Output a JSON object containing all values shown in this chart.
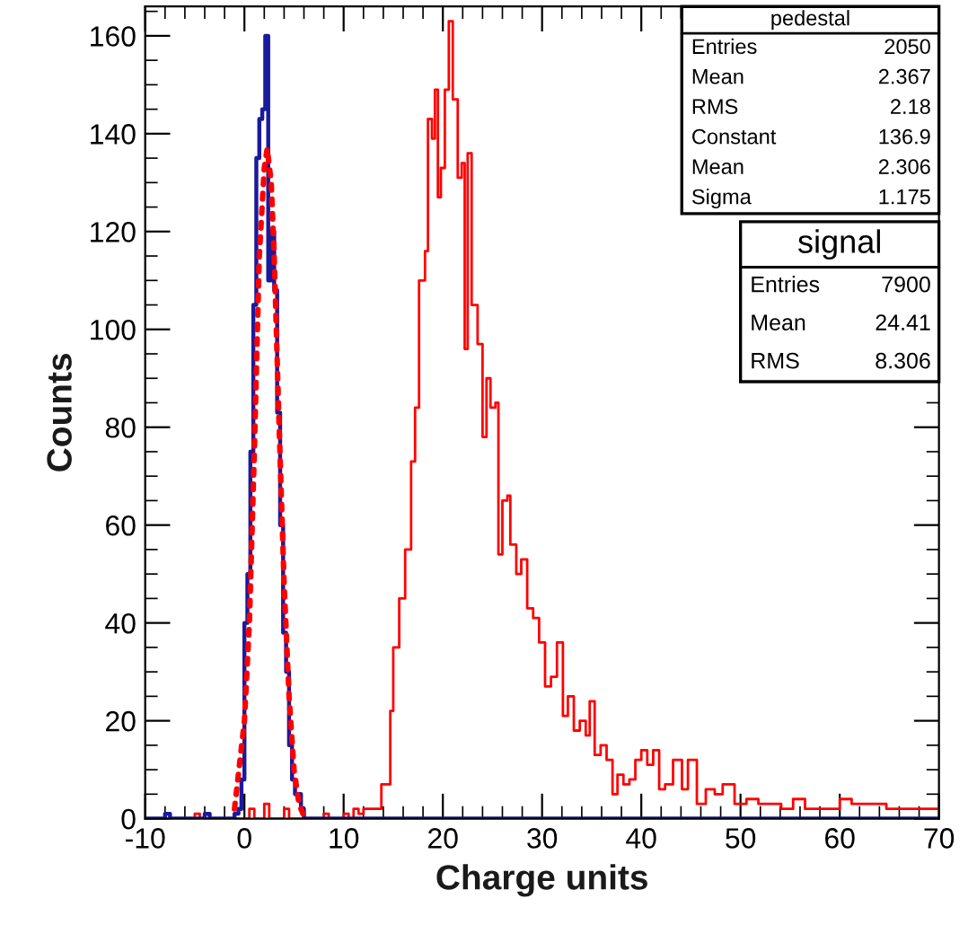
{
  "chart_data": {
    "type": "step",
    "xlabel": "Charge units",
    "ylabel": "Counts",
    "xlim": [
      -10,
      70
    ],
    "xticks": [
      -10,
      0,
      10,
      20,
      30,
      40,
      50,
      60,
      70
    ],
    "ylim": [
      0,
      166
    ],
    "yticks": [
      0,
      20,
      40,
      60,
      80,
      100,
      120,
      140,
      160
    ],
    "grid": false,
    "legend": false,
    "series": [
      {
        "color": "#ff0000",
        "x": [
          -10,
          -5,
          -4.5,
          0.5,
          1,
          2,
          2.5,
          4,
          4.5,
          8,
          8.5,
          10,
          10.5,
          11,
          11.5,
          12,
          12.4,
          13.8,
          14.7,
          15,
          15.6,
          16.2,
          16.8,
          17.2,
          17.6,
          18.2,
          18.5,
          18.9,
          19.2,
          19.5,
          19.8,
          20.2,
          20.6,
          21.0,
          21.5,
          21.9,
          22.2,
          22.5,
          22.9,
          23.5,
          24,
          24.4,
          24.8,
          25.3,
          25.6,
          26,
          26.5,
          26.8,
          27.4,
          27.9,
          28.5,
          29.1,
          29.7,
          30.3,
          30.9,
          31.5,
          32.1,
          32.6,
          33.2,
          33.8,
          34.4,
          34.8,
          35.3,
          35.9,
          36.5,
          37.1,
          37.6,
          38.2,
          38.8,
          39.4,
          40,
          40.6,
          41.2,
          41.8,
          42.4,
          43.2,
          44.1,
          44.7,
          45.6,
          46.5,
          47.4,
          48.2,
          49.4,
          50.6,
          51.8,
          52.9,
          54.1,
          55.3,
          56.5,
          58.2,
          60,
          61.2,
          62.9,
          64.7,
          66.5,
          68.2,
          70
        ],
        "values": [
          0,
          1,
          0,
          2,
          0,
          3,
          0,
          2,
          0,
          1,
          0,
          1,
          0,
          2,
          1,
          2,
          2,
          7,
          22,
          35,
          45,
          55,
          73,
          84,
          110,
          116,
          143,
          139,
          149,
          127,
          133,
          149,
          163,
          147,
          131,
          134,
          96,
          136,
          105,
          97,
          78,
          90,
          84,
          85,
          54,
          65,
          66,
          56,
          50,
          53,
          43,
          41,
          36,
          27,
          29,
          36,
          21,
          25,
          18,
          20,
          17,
          24,
          13,
          15,
          12,
          5,
          9,
          7,
          8,
          12,
          14,
          11,
          14,
          6,
          7,
          12,
          6,
          12,
          3,
          6,
          5,
          7,
          3,
          4,
          3,
          3,
          2,
          4,
          2,
          2,
          4,
          3,
          3,
          2,
          2,
          2,
          2
        ]
      },
      {
        "color": "#1a1a9c",
        "x": [
          -10,
          -8,
          -7.5,
          -4,
          -3.5,
          -1,
          -0.6,
          -0.3,
          0,
          0.3,
          0.6,
          0.9,
          1.2,
          1.5,
          1.8,
          2.1,
          2.4,
          2.7,
          3.0,
          3.3,
          3.6,
          3.9,
          4.2,
          4.5,
          4.8,
          5.1,
          5.4,
          5.7,
          6.0,
          6.3,
          70
        ],
        "values": [
          0,
          1,
          0,
          1,
          0,
          1,
          2,
          8,
          40,
          50,
          75,
          105,
          135,
          143,
          145,
          160,
          110,
          120,
          108,
          83,
          60,
          38,
          30,
          15,
          8,
          5,
          5,
          2,
          0,
          0,
          0
        ]
      },
      {
        "type": "line",
        "color": "#ff0000",
        "line_style": "dotted",
        "x": [
          -1,
          0,
          0.5,
          1,
          1.5,
          2,
          2.3,
          2.7,
          3,
          3.5,
          4,
          4.5,
          5,
          5.5,
          6
        ],
        "values": [
          2,
          20,
          40,
          75,
          115,
          133,
          137,
          130,
          115,
          80,
          48,
          25,
          10,
          3,
          0.5
        ]
      }
    ],
    "annotations": [
      "pedestal",
      "Entries\t2050",
      "Mean\t2.367",
      "RMS\t2.18",
      "Constant\t136.9",
      "Mean\t2.306",
      "Sigma\t1.175",
      "signal",
      "Entries\t7900",
      "Mean\t24.41",
      "RMS\t8.306"
    ]
  }
}
